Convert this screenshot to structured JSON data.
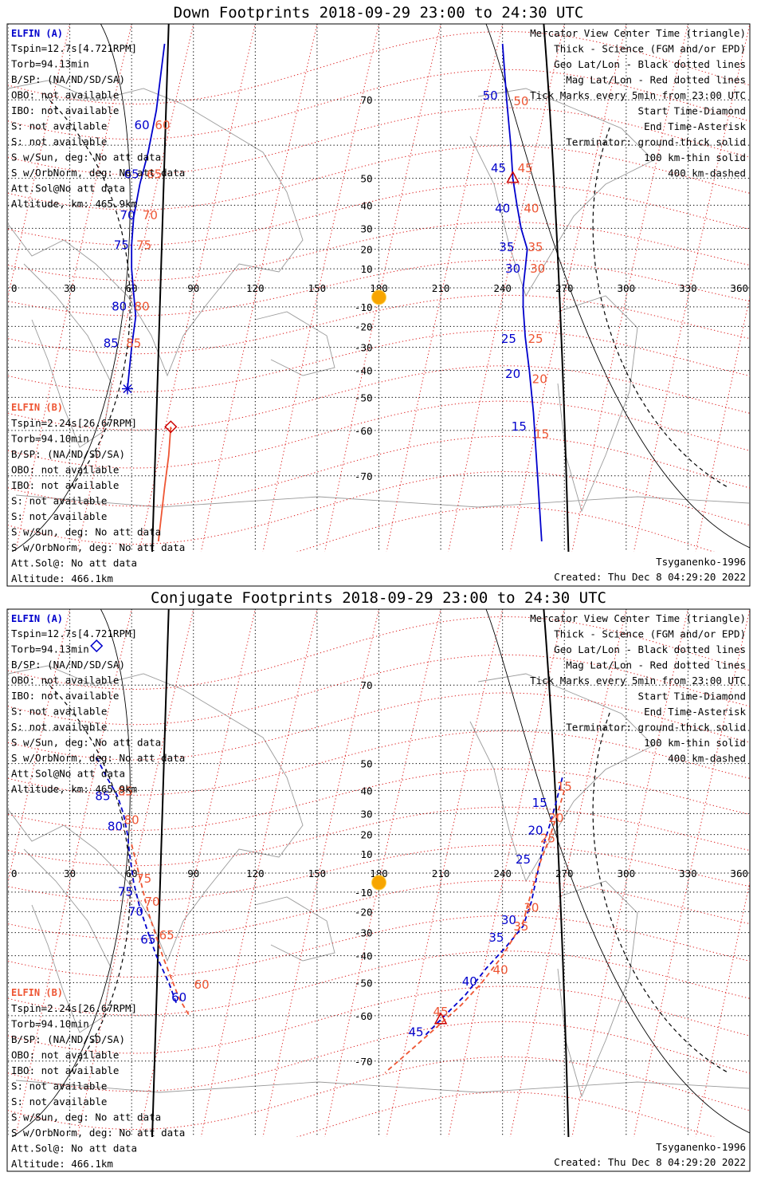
{
  "colors": {
    "elfin_a": "#0000cc",
    "elfin_b": "#ee5533",
    "geo_grid": "#000000",
    "mag_grid": "#dd2222",
    "coast": "#9a9a9a",
    "sun": "#f7a500"
  },
  "shared": {
    "lon_ticks": [
      "0",
      "30",
      "60",
      "90",
      "120",
      "150",
      "180",
      "210",
      "240",
      "270",
      "300",
      "330",
      "360"
    ],
    "lat_ticks": [
      "70",
      "50",
      "40",
      "30",
      "20",
      "10",
      "-10",
      "-20",
      "-30",
      "-40",
      "-50",
      "-60",
      "-70"
    ],
    "legend": [
      "Mercator View Center Time (triangle)",
      "Thick - Science (FGM and/or EPD)",
      "Geo Lat/Lon - Black dotted lines",
      "Mag Lat/Lon - Red dotted lines",
      "Tick Marks every 5min from 23:00 UTC",
      "Start Time-Diamond",
      "End Time-Asterisk",
      "Terminator: ground-thick solid",
      "100 km-thin solid",
      "400 km-dashed"
    ],
    "elfin_a_info": {
      "name": "ELFIN (A)",
      "lines": [
        "Tspin=12.7s[4.721RPM]",
        "Torb=94.13min",
        "B/SP: (NA/ND/SD/SA)",
        "OBO: not available",
        "IBO: not available",
        "S: not available",
        "S: not available",
        "S w/Sun, deg: No att data",
        "S w/OrbNorm, deg: No att data",
        "Att.Sol@No att data",
        "Altitude, km: 465.9km"
      ]
    },
    "elfin_b_info": {
      "name": "ELFIN (B)",
      "lines": [
        "Tspin=2.24s[26.67RPM]",
        "Torb=94.10min",
        "B/SP: (NA/ND/SD/SA)",
        "OBO: not available",
        "IBO: not available",
        "S: not available",
        "S: not available",
        "S w/Sun, deg: No att data",
        "S w/OrbNorm, deg: No att data",
        "Att.Sol@: No att data",
        "Altitude: 466.1km"
      ]
    },
    "model": "Tsyganenko-1996",
    "created": "Created: Thu Dec  8 04:29:20 2022"
  },
  "panels": [
    {
      "title": "Down Footprints 2018-09-29 23:00 to 24:30 UTC",
      "chart_data": {
        "type": "line",
        "projection": "mercator",
        "xlim": [
          0,
          360
        ],
        "ylim": [
          -80,
          80
        ],
        "sun": {
          "lon": 180,
          "lat": -5
        },
        "series": [
          {
            "name": "ELFIN (A)",
            "style": "solid",
            "track1": [
              [
                58,
                -47
              ],
              [
                60,
                -30
              ],
              [
                62,
                -15
              ],
              [
                61,
                -3
              ],
              [
                60,
                10
              ],
              [
                60,
                22
              ],
              [
                61,
                35
              ],
              [
                64,
                48
              ],
              [
                68,
                58
              ],
              [
                72,
                68
              ],
              [
                76,
                78
              ]
            ],
            "track2": [
              [
                240,
                78
              ],
              [
                242,
                70
              ],
              [
                244,
                60
              ],
              [
                245,
                50
              ],
              [
                247,
                40
              ],
              [
                249,
                30
              ],
              [
                252,
                20
              ],
              [
                251,
                10
              ],
              [
                250,
                0
              ],
              [
                250,
                -10
              ],
              [
                251,
                -25
              ],
              [
                253,
                -40
              ],
              [
                255,
                -55
              ],
              [
                257,
                -70
              ],
              [
                259,
                -79
              ]
            ],
            "triangle": [
              245,
              50
            ],
            "asterisk": [
              58,
              -47
            ]
          },
          {
            "name": "ELFIN (B)",
            "style": "solid",
            "track1": [
              [
                79,
                -59
              ],
              [
                78,
                -66
              ],
              [
                76,
                -72
              ],
              [
                73,
                -79
              ]
            ],
            "diamond": [
              79,
              -59
            ]
          }
        ],
        "labels_a": [
          {
            "t": "60",
            "lon": 65,
            "lat": 64
          },
          {
            "t": "65",
            "lon": 60,
            "lat": 50
          },
          {
            "t": "70",
            "lon": 58,
            "lat": 34
          },
          {
            "t": "75",
            "lon": 55,
            "lat": 20
          },
          {
            "t": "80",
            "lon": 54,
            "lat": -12
          },
          {
            "t": "85",
            "lon": 50,
            "lat": -30
          },
          {
            "t": "50",
            "lon": 234,
            "lat": 70
          },
          {
            "t": "45",
            "lon": 238,
            "lat": 52
          },
          {
            "t": "40",
            "lon": 240,
            "lat": 37
          },
          {
            "t": "35",
            "lon": 242,
            "lat": 19
          },
          {
            "t": "30",
            "lon": 245,
            "lat": 8
          },
          {
            "t": "25",
            "lon": 243,
            "lat": -28
          },
          {
            "t": "20",
            "lon": 245,
            "lat": -43
          },
          {
            "t": "15",
            "lon": 248,
            "lat": -60
          }
        ],
        "labels_b": [
          {
            "t": "60",
            "lon": 75,
            "lat": 64
          },
          {
            "t": "65",
            "lon": 71,
            "lat": 50
          },
          {
            "t": "70",
            "lon": 69,
            "lat": 34
          },
          {
            "t": "75",
            "lon": 66,
            "lat": 20
          },
          {
            "t": "80",
            "lon": 65,
            "lat": -12
          },
          {
            "t": "85",
            "lon": 61,
            "lat": -30
          },
          {
            "t": "50",
            "lon": 249,
            "lat": 69
          },
          {
            "t": "45",
            "lon": 251,
            "lat": 52
          },
          {
            "t": "40",
            "lon": 254,
            "lat": 37
          },
          {
            "t": "35",
            "lon": 256,
            "lat": 19
          },
          {
            "t": "30",
            "lon": 257,
            "lat": 8
          },
          {
            "t": "25",
            "lon": 256,
            "lat": -28
          },
          {
            "t": "20",
            "lon": 258,
            "lat": -45
          },
          {
            "t": "15",
            "lon": 259,
            "lat": -62
          }
        ]
      }
    },
    {
      "title": "Conjugate Footprints 2018-09-29 23:00 to 24:30 UTC",
      "chart_data": {
        "type": "line",
        "projection": "mercator",
        "xlim": [
          0,
          360
        ],
        "ylim": [
          -80,
          80
        ],
        "sun": {
          "lon": 180,
          "lat": -5
        },
        "series": [
          {
            "name": "ELFIN (A)",
            "style": "dashed",
            "track1": [
              [
                43,
                52
              ],
              [
                48,
                45
              ],
              [
                53,
                38
              ],
              [
                56,
                30
              ],
              [
                58,
                20
              ],
              [
                59,
                10
              ],
              [
                61,
                -5
              ],
              [
                64,
                -18
              ],
              [
                68,
                -30
              ],
              [
                72,
                -40
              ],
              [
                78,
                -50
              ],
              [
                82,
                -57
              ]
            ],
            "track2": [
              [
                269,
                45
              ],
              [
                266,
                35
              ],
              [
                263,
                25
              ],
              [
                260,
                15
              ],
              [
                257,
                0
              ],
              [
                254,
                -15
              ],
              [
                250,
                -27
              ],
              [
                242,
                -36
              ],
              [
                232,
                -45
              ],
              [
                222,
                -54
              ],
              [
                210,
                -61
              ],
              [
                202,
                -65
              ]
            ],
            "triangle": [
              210,
              -61
            ],
            "diamond": [
              43,
              76
            ]
          },
          {
            "name": "ELFIN (B)",
            "style": "dashed",
            "track1": [
              [
                60,
                15
              ],
              [
                63,
                2
              ],
              [
                68,
                -20
              ],
              [
                75,
                -40
              ],
              [
                83,
                -55
              ],
              [
                88,
                -60
              ]
            ],
            "track2": [
              [
                270,
                40
              ],
              [
                266,
                28
              ],
              [
                262,
                16
              ],
              [
                258,
                5
              ],
              [
                254,
                -10
              ],
              [
                250,
                -25
              ],
              [
                240,
                -40
              ],
              [
                230,
                -50
              ],
              [
                220,
                -57
              ],
              [
                210,
                -62
              ],
              [
                198,
                -67
              ],
              [
                183,
                -72
              ]
            ]
          }
        ],
        "labels_a": [
          {
            "t": "85",
            "lon": 46,
            "lat": 36
          },
          {
            "t": "80",
            "lon": 52,
            "lat": 22
          },
          {
            "t": "75",
            "lon": 57,
            "lat": -12
          },
          {
            "t": "70",
            "lon": 62,
            "lat": -22
          },
          {
            "t": "65",
            "lon": 68,
            "lat": -35
          },
          {
            "t": "60",
            "lon": 83,
            "lat": -56
          },
          {
            "t": "15",
            "lon": 258,
            "lat": 33
          },
          {
            "t": "20",
            "lon": 256,
            "lat": 20
          },
          {
            "t": "25",
            "lon": 250,
            "lat": 5
          },
          {
            "t": "30",
            "lon": 243,
            "lat": -26
          },
          {
            "t": "35",
            "lon": 237,
            "lat": -34
          },
          {
            "t": "40",
            "lon": 224,
            "lat": -51
          },
          {
            "t": "45",
            "lon": 198,
            "lat": -65
          }
        ],
        "labels_b": [
          {
            "t": "85",
            "lon": 57,
            "lat": 38
          },
          {
            "t": "80",
            "lon": 60,
            "lat": 25
          },
          {
            "t": "75",
            "lon": 66,
            "lat": -5
          },
          {
            "t": "70",
            "lon": 70,
            "lat": -17
          },
          {
            "t": "65",
            "lon": 77,
            "lat": -33
          },
          {
            "t": "60",
            "lon": 94,
            "lat": -52
          },
          {
            "t": "15",
            "lon": 270,
            "lat": 40
          },
          {
            "t": "20",
            "lon": 266,
            "lat": 26
          },
          {
            "t": "25",
            "lon": 262,
            "lat": 16
          },
          {
            "t": "30",
            "lon": 254,
            "lat": -20
          },
          {
            "t": "35",
            "lon": 249,
            "lat": -29
          },
          {
            "t": "40",
            "lon": 239,
            "lat": -47
          },
          {
            "t": "45",
            "lon": 210,
            "lat": -60
          }
        ]
      }
    }
  ]
}
